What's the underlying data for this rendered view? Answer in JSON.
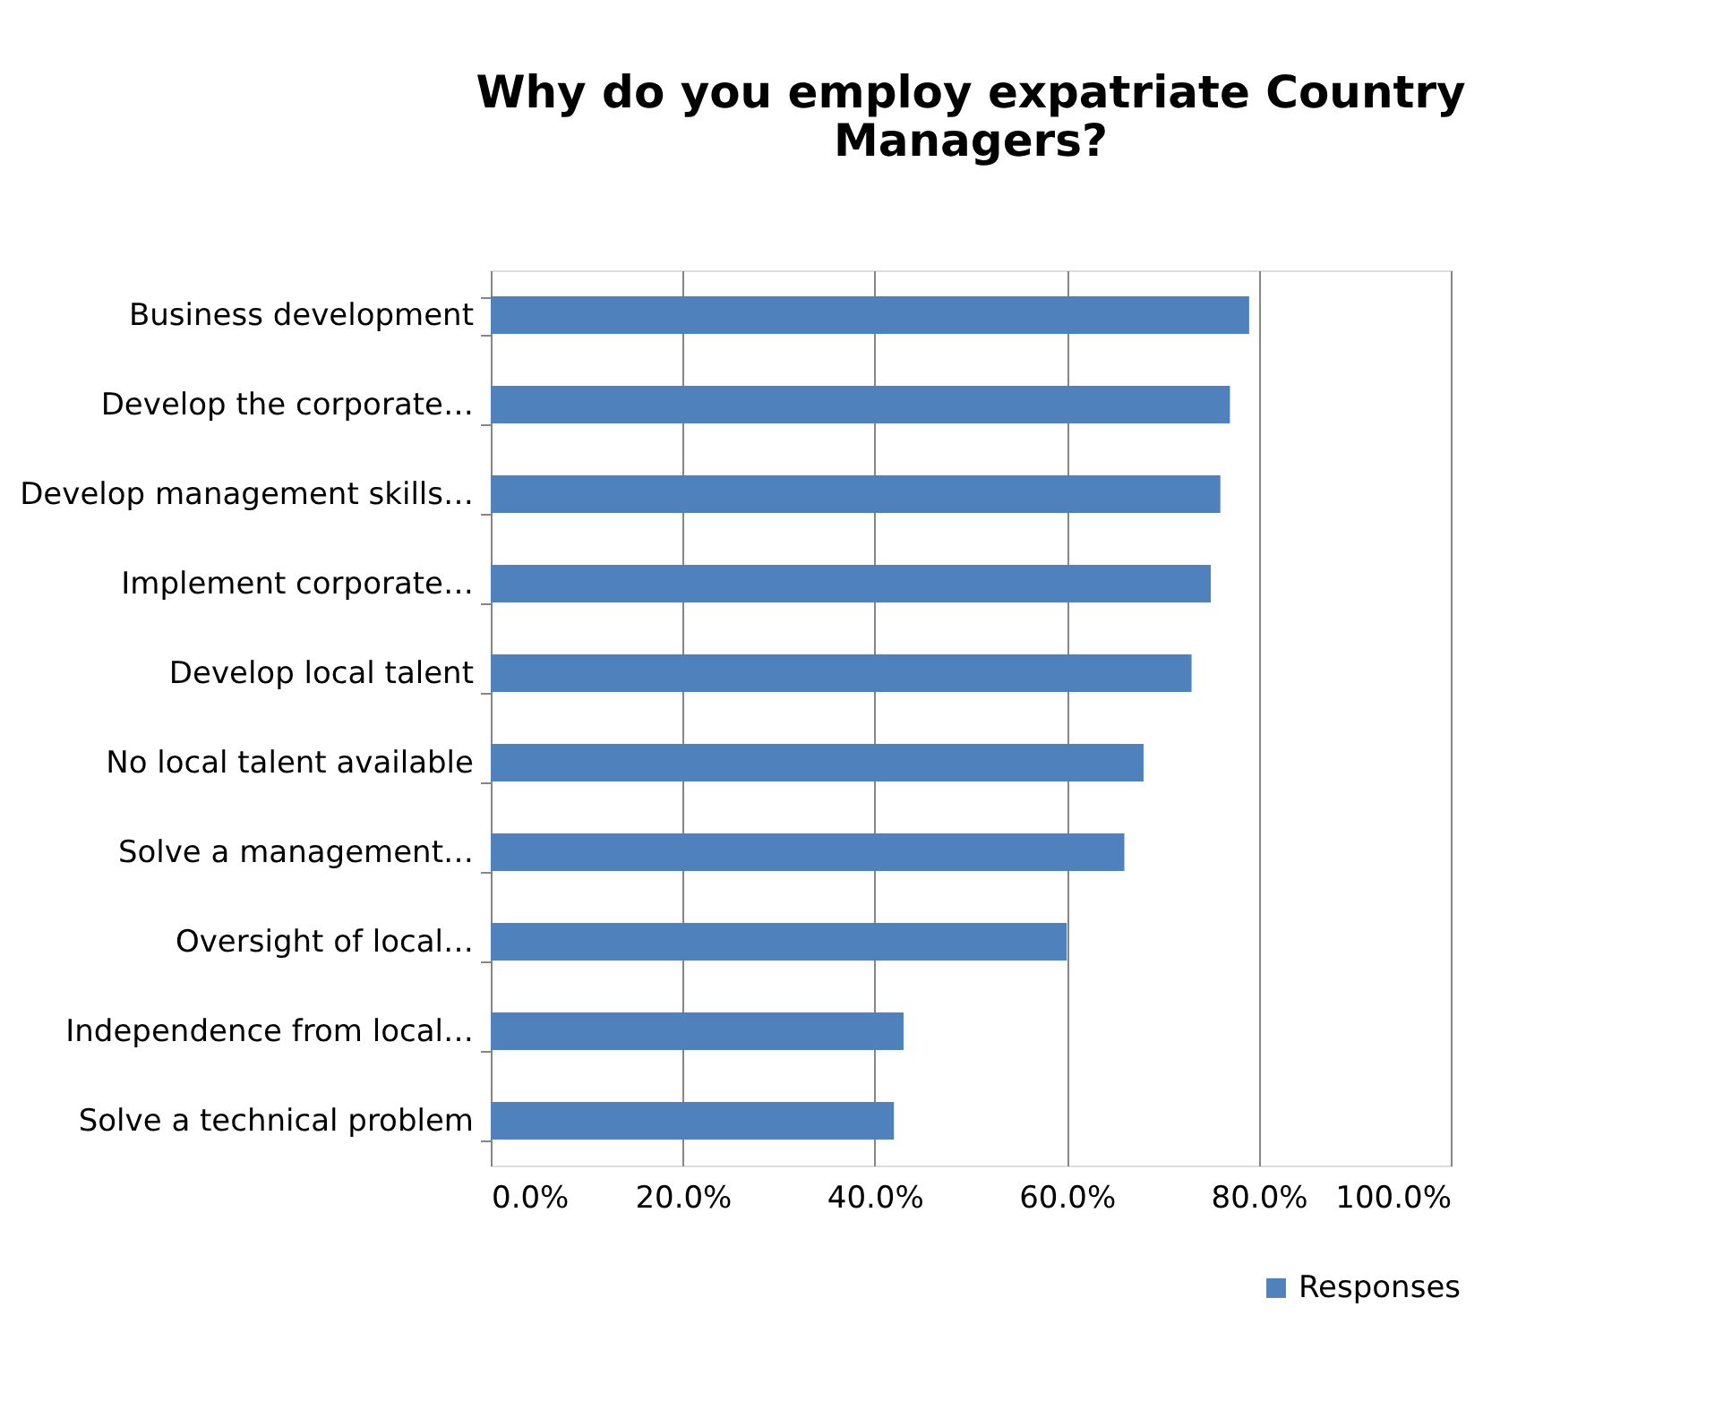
{
  "chart_data": {
    "type": "bar",
    "orientation": "horizontal",
    "title": "Why do you employ expatriate Country Managers?",
    "categories": [
      "Business development",
      "Develop the corporate…",
      "Develop management skills…",
      "Implement corporate…",
      "Develop local talent",
      "No local talent available",
      "Solve a management…",
      "Oversight of local…",
      "Independence from local…",
      "Solve a technical problem"
    ],
    "series": [
      {
        "name": "Responses",
        "color": "#4f81bd",
        "values": [
          79,
          77,
          76,
          75,
          73,
          68,
          66,
          60,
          43,
          42
        ]
      }
    ],
    "xlim": [
      0,
      100
    ],
    "xticks": [
      {
        "value": 0,
        "label": "0.0%"
      },
      {
        "value": 20,
        "label": "20.0%"
      },
      {
        "value": 40,
        "label": "40.0%"
      },
      {
        "value": 60,
        "label": "60.0%"
      },
      {
        "value": 80,
        "label": "80.0%"
      },
      {
        "value": 100,
        "label": "100.0%"
      }
    ],
    "grid": "x",
    "legend": "bottom right"
  }
}
